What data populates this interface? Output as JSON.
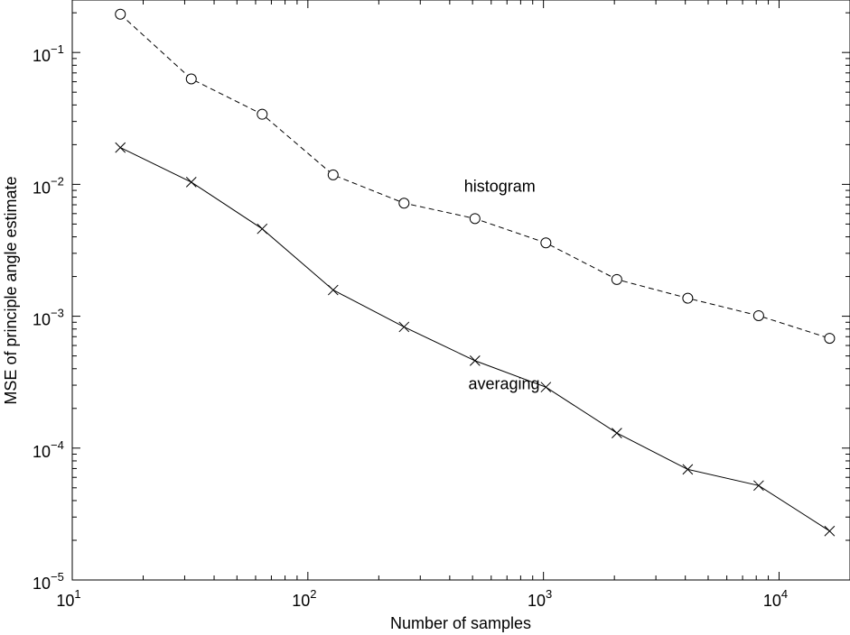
{
  "chart_data": {
    "type": "line",
    "title": "",
    "xlabel": "Number of samples",
    "ylabel": "MSE of principle angle estimate",
    "x_scale": "log",
    "y_scale": "log",
    "xlim": [
      10,
      20000
    ],
    "ylim": [
      1e-05,
      0.25
    ],
    "grid": false,
    "x_ticks": [
      {
        "value": 10,
        "base": "10",
        "exp": "1"
      },
      {
        "value": 100,
        "base": "10",
        "exp": "2"
      },
      {
        "value": 1000,
        "base": "10",
        "exp": "3"
      },
      {
        "value": 10000,
        "base": "10",
        "exp": "4"
      }
    ],
    "y_ticks": [
      {
        "value": 1e-05,
        "base": "10",
        "exp": "−5"
      },
      {
        "value": 0.0001,
        "base": "10",
        "exp": "−4"
      },
      {
        "value": 0.001,
        "base": "10",
        "exp": "−3"
      },
      {
        "value": 0.01,
        "base": "10",
        "exp": "−2"
      },
      {
        "value": 0.1,
        "base": "10",
        "exp": "−1"
      }
    ],
    "x": [
      16,
      32,
      64,
      128,
      256,
      512,
      1024,
      2048,
      4096,
      8192,
      16384
    ],
    "series": [
      {
        "name": "histogram",
        "marker": "circle",
        "line_style": "dashed",
        "values": [
          0.195,
          0.063,
          0.034,
          0.0118,
          0.0072,
          0.0055,
          0.0036,
          0.0019,
          0.00137,
          0.00101,
          0.00068
        ]
      },
      {
        "name": "averaging",
        "marker": "x",
        "line_style": "solid",
        "values": [
          0.019,
          0.0104,
          0.0046,
          0.00158,
          0.00083,
          0.00046,
          0.00029,
          0.00013,
          6.9e-05,
          5.2e-05,
          2.35e-05
        ]
      }
    ],
    "annotations": [
      {
        "text": "histogram",
        "x": 460,
        "y": 0.0088
      },
      {
        "text": "averaging",
        "x": 480,
        "y": 0.00028
      }
    ]
  }
}
